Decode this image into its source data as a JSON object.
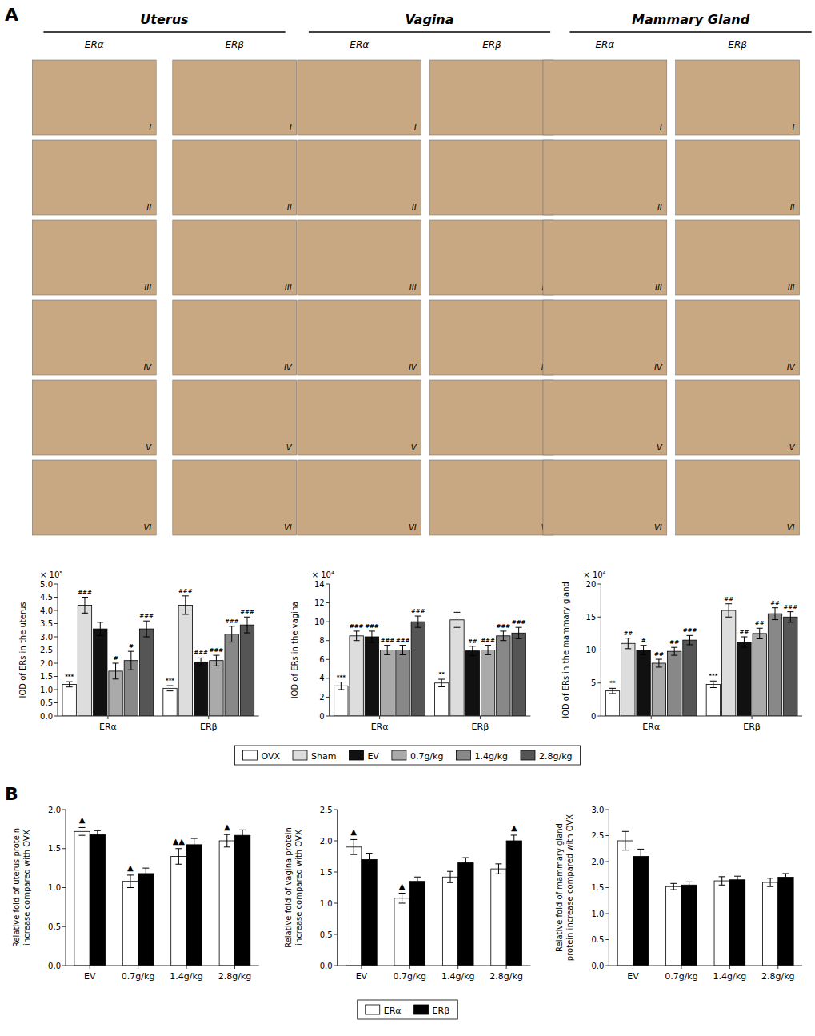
{
  "chart_data": [
    {
      "type": "image_grid",
      "panel_label": "A",
      "categories": [
        "Uterus",
        "Vagina",
        "Mammary Gland"
      ],
      "subcategories": [
        "ERα",
        "ERβ"
      ],
      "row_labels": [
        "I",
        "II",
        "III",
        "IV",
        "V",
        "VI"
      ]
    },
    {
      "type": "bar",
      "categories": [
        "ERα",
        "ERβ"
      ],
      "ylabel": "IOD of ERs in the uterus",
      "annotations": [
        "× 10⁵"
      ],
      "ylim": [
        0,
        5
      ],
      "yticks": [
        {
          "value": 0,
          "label": "0.0"
        },
        {
          "value": 0.5,
          "label": "0.5"
        },
        {
          "value": 1,
          "label": "1.0"
        },
        {
          "value": 1.5,
          "label": "1.5"
        },
        {
          "value": 2,
          "label": "2.0"
        },
        {
          "value": 2.5,
          "label": "2.5"
        },
        {
          "value": 3,
          "label": "3.0"
        },
        {
          "value": 3.5,
          "label": "3.5"
        },
        {
          "value": 4,
          "label": "4.0"
        },
        {
          "value": 4.5,
          "label": "4.5"
        },
        {
          "value": 5,
          "label": "5.0"
        }
      ],
      "grid": false,
      "legend": "bottom",
      "series": [
        {
          "name": "OVX",
          "color": "#ffffff",
          "values": [
            1.2,
            1.05
          ],
          "errors": [
            0.1,
            0.1
          ],
          "significance": [
            "***",
            "***"
          ]
        },
        {
          "name": "Sham",
          "color": "#dddddd",
          "values": [
            4.2,
            4.2
          ],
          "errors": [
            0.3,
            0.35
          ],
          "significance": [
            "###",
            "###"
          ]
        },
        {
          "name": "EV",
          "color": "#111111",
          "values": [
            3.3,
            2.05
          ],
          "errors": [
            0.25,
            0.15
          ],
          "significance": [
            null,
            "###"
          ]
        },
        {
          "name": "0.7g/kg",
          "color": "#aaaaaa",
          "values": [
            1.7,
            2.1
          ],
          "errors": [
            0.3,
            0.2
          ],
          "significance": [
            "#",
            "###"
          ]
        },
        {
          "name": "1.4g/kg",
          "color": "#888888",
          "values": [
            2.1,
            3.1
          ],
          "errors": [
            0.35,
            0.3
          ],
          "significance": [
            "#",
            "###"
          ]
        },
        {
          "name": "2.8g/kg",
          "color": "#555555",
          "values": [
            3.3,
            3.45
          ],
          "errors": [
            0.3,
            0.3
          ],
          "significance": [
            "###",
            "###"
          ]
        }
      ]
    },
    {
      "type": "bar",
      "categories": [
        "ERα",
        "ERβ"
      ],
      "ylabel": "IOD of ERs in the vagina",
      "annotations": [
        "× 10⁴"
      ],
      "ylim": [
        0,
        14
      ],
      "yticks": [
        0,
        2,
        4,
        6,
        8,
        10,
        12,
        14
      ],
      "grid": false,
      "series": [
        {
          "name": "OVX",
          "color": "#ffffff",
          "values": [
            3.2,
            3.5
          ],
          "errors": [
            0.4,
            0.4
          ],
          "significance": [
            "***",
            "**"
          ]
        },
        {
          "name": "Sham",
          "color": "#dddddd",
          "values": [
            8.5,
            10.2
          ],
          "errors": [
            0.5,
            0.8
          ],
          "significance": [
            "###",
            null
          ]
        },
        {
          "name": "EV",
          "color": "#111111",
          "values": [
            8.4,
            6.9
          ],
          "errors": [
            0.6,
            0.5
          ],
          "significance": [
            "###",
            "##"
          ]
        },
        {
          "name": "0.7g/kg",
          "color": "#aaaaaa",
          "values": [
            7.0,
            7.0
          ],
          "errors": [
            0.5,
            0.5
          ],
          "significance": [
            "###",
            "###"
          ]
        },
        {
          "name": "1.4g/kg",
          "color": "#888888",
          "values": [
            7.0,
            8.5
          ],
          "errors": [
            0.5,
            0.5
          ],
          "significance": [
            "###",
            "###"
          ]
        },
        {
          "name": "2.8g/kg",
          "color": "#555555",
          "values": [
            10.0,
            8.8
          ],
          "errors": [
            0.6,
            0.6
          ],
          "significance": [
            "###",
            "###"
          ]
        }
      ]
    },
    {
      "type": "bar",
      "categories": [
        "ERα",
        "ERβ"
      ],
      "ylabel": "IOD of ERs in the mammary gland",
      "annotations": [
        "× 10⁴"
      ],
      "ylim": [
        0,
        20
      ],
      "yticks": [
        0,
        5,
        10,
        15,
        20
      ],
      "grid": false,
      "series": [
        {
          "name": "OVX",
          "color": "#ffffff",
          "values": [
            3.8,
            4.8
          ],
          "errors": [
            0.4,
            0.5
          ],
          "significance": [
            "**",
            "***"
          ]
        },
        {
          "name": "Sham",
          "color": "#dddddd",
          "values": [
            11.0,
            16.0
          ],
          "errors": [
            0.8,
            1.0
          ],
          "significance": [
            "##",
            "##"
          ]
        },
        {
          "name": "EV",
          "color": "#111111",
          "values": [
            10.0,
            11.2
          ],
          "errors": [
            0.7,
            0.8
          ],
          "significance": [
            "#",
            "##"
          ]
        },
        {
          "name": "0.7g/kg",
          "color": "#aaaaaa",
          "values": [
            8.0,
            12.5
          ],
          "errors": [
            0.6,
            0.8
          ],
          "significance": [
            "##",
            "##"
          ]
        },
        {
          "name": "1.4g/kg",
          "color": "#888888",
          "values": [
            9.8,
            15.5
          ],
          "errors": [
            0.6,
            0.9
          ],
          "significance": [
            "##",
            "##"
          ]
        },
        {
          "name": "2.8g/kg",
          "color": "#555555",
          "values": [
            11.5,
            15.0
          ],
          "errors": [
            0.7,
            0.8
          ],
          "significance": [
            "###",
            "###"
          ]
        }
      ]
    },
    {
      "type": "bar",
      "panel_label": "B",
      "categories": [
        "EV",
        "0.7g/kg",
        "1.4g/kg",
        "2.8g/kg"
      ],
      "ylabel": "Relative fold of uterus protein\nincrease compared with OVX",
      "ylim": [
        0,
        2.0
      ],
      "yticks": [
        {
          "value": 0,
          "label": "0.0"
        },
        {
          "value": 0.5,
          "label": "0.5"
        },
        {
          "value": 1,
          "label": "1.0"
        },
        {
          "value": 1.5,
          "label": "1.5"
        },
        {
          "value": 2,
          "label": "2.0"
        }
      ],
      "grid": false,
      "legend": "bottom",
      "series": [
        {
          "name": "ERα",
          "color": "#ffffff",
          "values": [
            1.72,
            1.08,
            1.4,
            1.6
          ],
          "errors": [
            0.05,
            0.08,
            0.1,
            0.08
          ],
          "significance": [
            "▲",
            "▲",
            "▲▲",
            "▲"
          ]
        },
        {
          "name": "ERβ",
          "color": "#000000",
          "values": [
            1.68,
            1.18,
            1.55,
            1.67
          ],
          "errors": [
            0.05,
            0.07,
            0.08,
            0.07
          ]
        }
      ]
    },
    {
      "type": "bar",
      "categories": [
        "EV",
        "0.7g/kg",
        "1.4g/kg",
        "2.8g/kg"
      ],
      "ylabel": "Relative fold of vagina protein\nincrease compared with OVX",
      "ylim": [
        0,
        2.5
      ],
      "yticks": [
        {
          "value": 0,
          "label": "0.0"
        },
        {
          "value": 0.5,
          "label": "0.5"
        },
        {
          "value": 1,
          "label": "1.0"
        },
        {
          "value": 1.5,
          "label": "1.5"
        },
        {
          "value": 2,
          "label": "2.0"
        },
        {
          "value": 2.5,
          "label": "2.5"
        }
      ],
      "grid": false,
      "series": [
        {
          "name": "ERα",
          "color": "#ffffff",
          "values": [
            1.9,
            1.08,
            1.42,
            1.55
          ],
          "errors": [
            0.12,
            0.08,
            0.09,
            0.08
          ],
          "significance": [
            "▲",
            "▲",
            null,
            null
          ]
        },
        {
          "name": "ERβ",
          "color": "#000000",
          "values": [
            1.7,
            1.35,
            1.65,
            2.0
          ],
          "errors": [
            0.1,
            0.07,
            0.08,
            0.09
          ],
          "significance": [
            null,
            null,
            null,
            "▲"
          ]
        }
      ]
    },
    {
      "type": "bar",
      "categories": [
        "EV",
        "0.7g/kg",
        "1.4g/kg",
        "2.8g/kg"
      ],
      "ylabel": "Relative fold of mammary gland\nprotein increase compared with OVX",
      "ylim": [
        0,
        3.0
      ],
      "yticks": [
        {
          "value": 0,
          "label": "0.0"
        },
        {
          "value": 0.5,
          "label": "0.5"
        },
        {
          "value": 1,
          "label": "1.0"
        },
        {
          "value": 1.5,
          "label": "1.5"
        },
        {
          "value": 2,
          "label": "2.0"
        },
        {
          "value": 2.5,
          "label": "2.5"
        },
        {
          "value": 3,
          "label": "3.0"
        }
      ],
      "grid": false,
      "series": [
        {
          "name": "ERα",
          "color": "#ffffff",
          "values": [
            2.4,
            1.52,
            1.63,
            1.6
          ],
          "errors": [
            0.18,
            0.06,
            0.08,
            0.08
          ]
        },
        {
          "name": "ERβ",
          "color": "#000000",
          "values": [
            2.1,
            1.55,
            1.65,
            1.7
          ],
          "errors": [
            0.14,
            0.06,
            0.07,
            0.07
          ]
        }
      ]
    }
  ]
}
